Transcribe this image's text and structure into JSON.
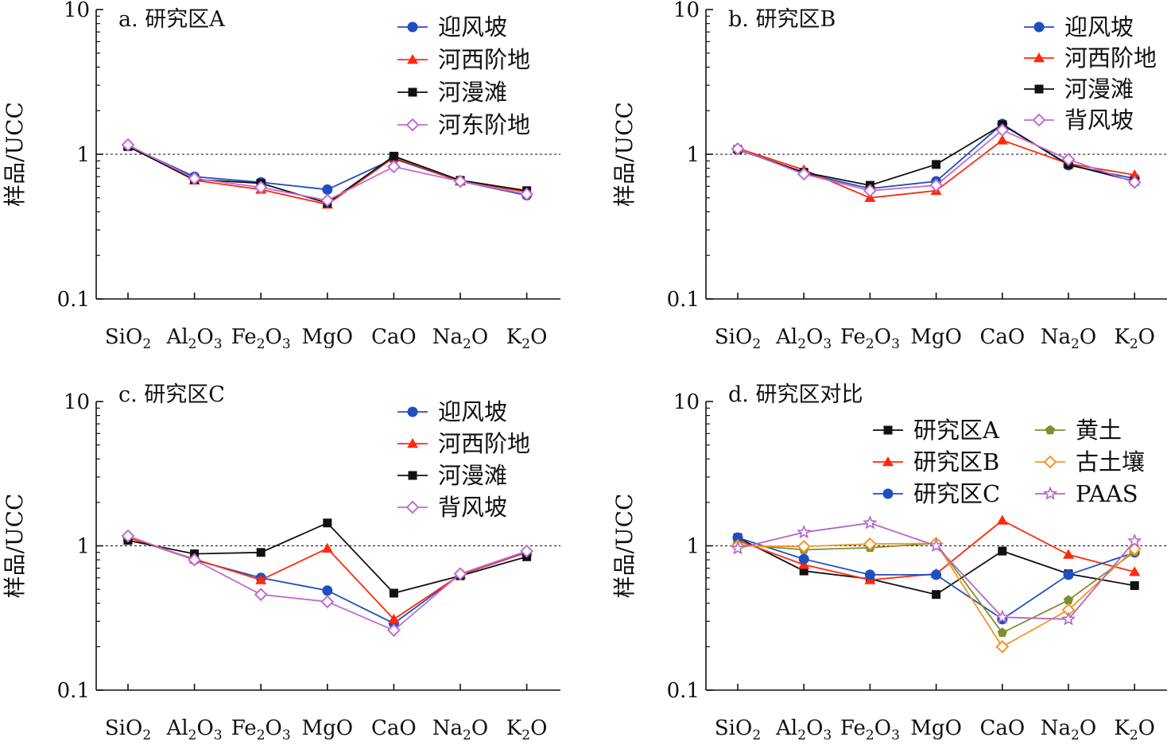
{
  "colors": {
    "blue": "#1f4fbf",
    "red": "#ff2a0d",
    "black": "#111111",
    "violet": "#c36cd0",
    "olive": "#7d8f2e",
    "orange": "#f79422",
    "pink": "#b565c9"
  },
  "chart_data": [
    {
      "type": "line",
      "title": "a. 研究区A",
      "ylabel": "样品/UCC",
      "yscale": "log",
      "ylim": [
        0.1,
        10
      ],
      "yticks": [
        "10",
        "1",
        "0.1"
      ],
      "reference_line": 1,
      "categories": [
        "SiO2",
        "Al2O3",
        "Fe2O3",
        "MgO",
        "CaO",
        "Na2O",
        "K2O"
      ],
      "legend_columns": 1,
      "series": [
        {
          "name": "迎风坡",
          "color": "#1f4fbf",
          "marker": "circle",
          "values": [
            1.14,
            0.7,
            0.64,
            0.57,
            0.93,
            0.65,
            0.52
          ]
        },
        {
          "name": "河西阶地",
          "color": "#ff2a0d",
          "marker": "triangle",
          "values": [
            1.14,
            0.66,
            0.57,
            0.45,
            0.95,
            0.65,
            0.55
          ]
        },
        {
          "name": "河漫滩",
          "color": "#111111",
          "marker": "square",
          "values": [
            1.13,
            0.67,
            0.63,
            0.46,
            0.97,
            0.66,
            0.56
          ]
        },
        {
          "name": "河东阶地",
          "color": "#c36cd0",
          "marker": "diamond",
          "values": [
            1.16,
            0.68,
            0.59,
            0.48,
            0.82,
            0.65,
            0.53
          ]
        }
      ]
    },
    {
      "type": "line",
      "title": "b. 研究区B",
      "ylabel": "样品/UCC",
      "yscale": "log",
      "ylim": [
        0.1,
        10
      ],
      "yticks": [
        "10",
        "1",
        "0.1"
      ],
      "reference_line": 1,
      "categories": [
        "SiO2",
        "Al2O3",
        "Fe2O3",
        "MgO",
        "CaO",
        "Na2O",
        "K2O"
      ],
      "legend_columns": 1,
      "series": [
        {
          "name": "迎风坡",
          "color": "#1f4fbf",
          "marker": "circle",
          "values": [
            1.08,
            0.74,
            0.58,
            0.65,
            1.62,
            0.84,
            0.68
          ]
        },
        {
          "name": "河西阶地",
          "color": "#ff2a0d",
          "marker": "triangle",
          "values": [
            1.1,
            0.78,
            0.5,
            0.56,
            1.25,
            0.86,
            0.72
          ]
        },
        {
          "name": "河漫滩",
          "color": "#111111",
          "marker": "square",
          "values": [
            1.08,
            0.75,
            0.61,
            0.85,
            1.6,
            0.85,
            0.65
          ]
        },
        {
          "name": "背风坡",
          "color": "#c36cd0",
          "marker": "diamond",
          "values": [
            1.09,
            0.73,
            0.56,
            0.61,
            1.47,
            0.92,
            0.64
          ]
        }
      ]
    },
    {
      "type": "line",
      "title": "c. 研究区C",
      "ylabel": "样品/UCC",
      "yscale": "log",
      "ylim": [
        0.1,
        10
      ],
      "yticks": [
        "10",
        "1",
        "0.1"
      ],
      "reference_line": 1,
      "categories": [
        "SiO2",
        "Al2O3",
        "Fe2O3",
        "MgO",
        "CaO",
        "Na2O",
        "K2O"
      ],
      "legend_columns": 1,
      "series": [
        {
          "name": "迎风坡",
          "color": "#1f4fbf",
          "marker": "circle",
          "values": [
            1.15,
            0.8,
            0.6,
            0.49,
            0.29,
            0.63,
            0.9
          ]
        },
        {
          "name": "河西阶地",
          "color": "#ff2a0d",
          "marker": "triangle",
          "values": [
            1.14,
            0.81,
            0.58,
            0.96,
            0.31,
            0.63,
            0.91
          ]
        },
        {
          "name": "河漫滩",
          "color": "#111111",
          "marker": "square",
          "values": [
            1.09,
            0.88,
            0.9,
            1.44,
            0.47,
            0.62,
            0.84
          ]
        },
        {
          "name": "背风坡",
          "color": "#c36cd0",
          "marker": "diamond",
          "values": [
            1.17,
            0.8,
            0.46,
            0.41,
            0.26,
            0.64,
            0.92
          ]
        }
      ]
    },
    {
      "type": "line",
      "title": "d. 研究区对比",
      "ylabel": "样品/UCC",
      "yscale": "log",
      "ylim": [
        0.1,
        10
      ],
      "yticks": [
        "10",
        "1",
        "0.1"
      ],
      "reference_line": 1,
      "categories": [
        "SiO2",
        "Al2O3",
        "Fe2O3",
        "MgO",
        "CaO",
        "Na2O",
        "K2O"
      ],
      "legend_columns": 2,
      "series": [
        {
          "name": "研究区A",
          "color": "#111111",
          "marker": "square",
          "values": [
            1.14,
            0.67,
            0.59,
            0.46,
            0.92,
            0.64,
            0.53
          ]
        },
        {
          "name": "研究区B",
          "color": "#ff2a0d",
          "marker": "triangle",
          "values": [
            1.09,
            0.74,
            0.58,
            0.64,
            1.5,
            0.87,
            0.66
          ]
        },
        {
          "name": "研究区C",
          "color": "#1f4fbf",
          "marker": "circle",
          "values": [
            1.14,
            0.81,
            0.63,
            0.63,
            0.31,
            0.63,
            0.9
          ]
        },
        {
          "name": "黄土",
          "color": "#7d8f2e",
          "marker": "pentagon",
          "values": [
            1.02,
            0.94,
            0.97,
            1.04,
            0.25,
            0.42,
            0.91
          ]
        },
        {
          "name": "古土壤",
          "color": "#f79422",
          "marker": "diamond",
          "values": [
            1.0,
            0.99,
            1.03,
            1.04,
            0.2,
            0.36,
            0.95
          ]
        },
        {
          "name": "PAAS",
          "color": "#b565c9",
          "marker": "star",
          "values": [
            0.96,
            1.24,
            1.44,
            1.0,
            0.32,
            0.31,
            1.08
          ]
        }
      ]
    }
  ]
}
